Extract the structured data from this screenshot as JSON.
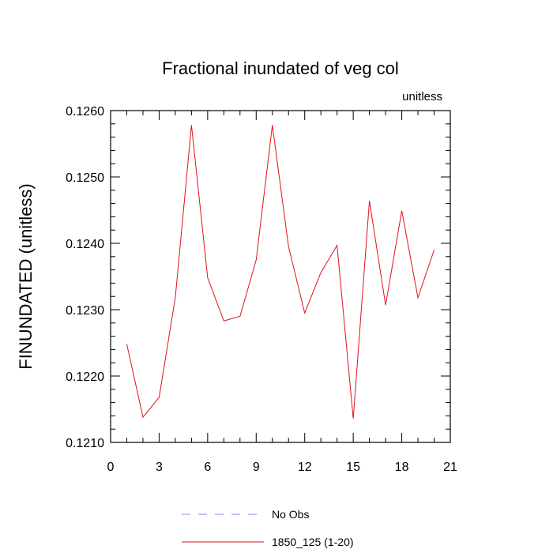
{
  "chart_data": {
    "type": "line",
    "title": "Fractional inundated of veg col",
    "units_label": "unitless",
    "ylabel": "FINUNDATED  (unitless)",
    "xlabel": "",
    "xlim": [
      0,
      21
    ],
    "ylim": [
      0.121,
      0.126
    ],
    "x_ticks": [
      0,
      3,
      6,
      9,
      12,
      15,
      18,
      21
    ],
    "y_ticks": [
      "0.1210",
      "0.1220",
      "0.1230",
      "0.1240",
      "0.1250",
      "0.1260"
    ],
    "grid": false,
    "legend_position": "bottom-center",
    "x": [
      1,
      2,
      3,
      4,
      5,
      6,
      7,
      8,
      9,
      10,
      11,
      12,
      13,
      14,
      15,
      16,
      17,
      18,
      19,
      20
    ],
    "series": [
      {
        "name": "1850_125 (1-20)",
        "color": "#e0101a",
        "dash": false,
        "values": [
          0.12248,
          0.12138,
          0.12168,
          0.12318,
          0.12578,
          0.12348,
          0.12283,
          0.1229,
          0.12375,
          0.12578,
          0.12395,
          0.12295,
          0.12356,
          0.12397,
          0.12136,
          0.12464,
          0.12307,
          0.12449,
          0.12318,
          0.1239
        ]
      }
    ],
    "legend": [
      {
        "label": "No Obs",
        "color": "#8a8ae6",
        "dash": true
      },
      {
        "label": "1850_125 (1-20)",
        "color": "#e0101a",
        "dash": false
      }
    ]
  }
}
